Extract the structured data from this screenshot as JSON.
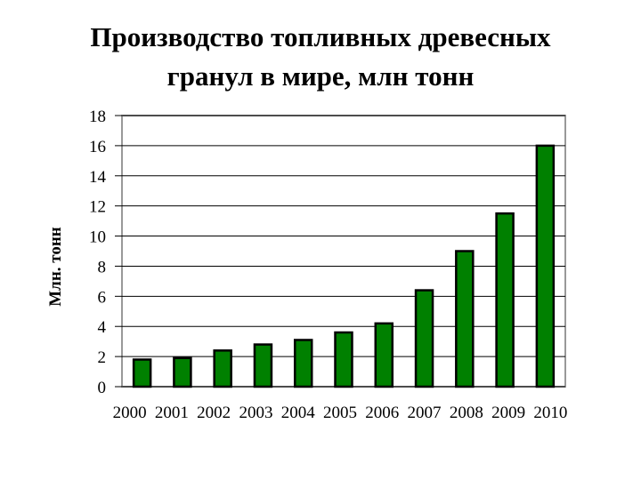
{
  "chart_data": {
    "type": "bar",
    "title": [
      "Производство топливных древесных",
      "гранул в мире, млн тонн"
    ],
    "y_label": "Млн. тонн",
    "categories": [
      "2000",
      "2001",
      "2002",
      "2003",
      "2004",
      "2005",
      "2006",
      "2007",
      "2008",
      "2009",
      "2010"
    ],
    "values": [
      1.8,
      1.9,
      2.4,
      2.8,
      3.1,
      3.6,
      4.2,
      6.4,
      9.0,
      11.5,
      16.0
    ],
    "color": "#008000",
    "ylim": [
      0,
      18
    ],
    "yticks": [
      0,
      2,
      4,
      6,
      8,
      10,
      12,
      14,
      16,
      18
    ],
    "grid": true
  }
}
